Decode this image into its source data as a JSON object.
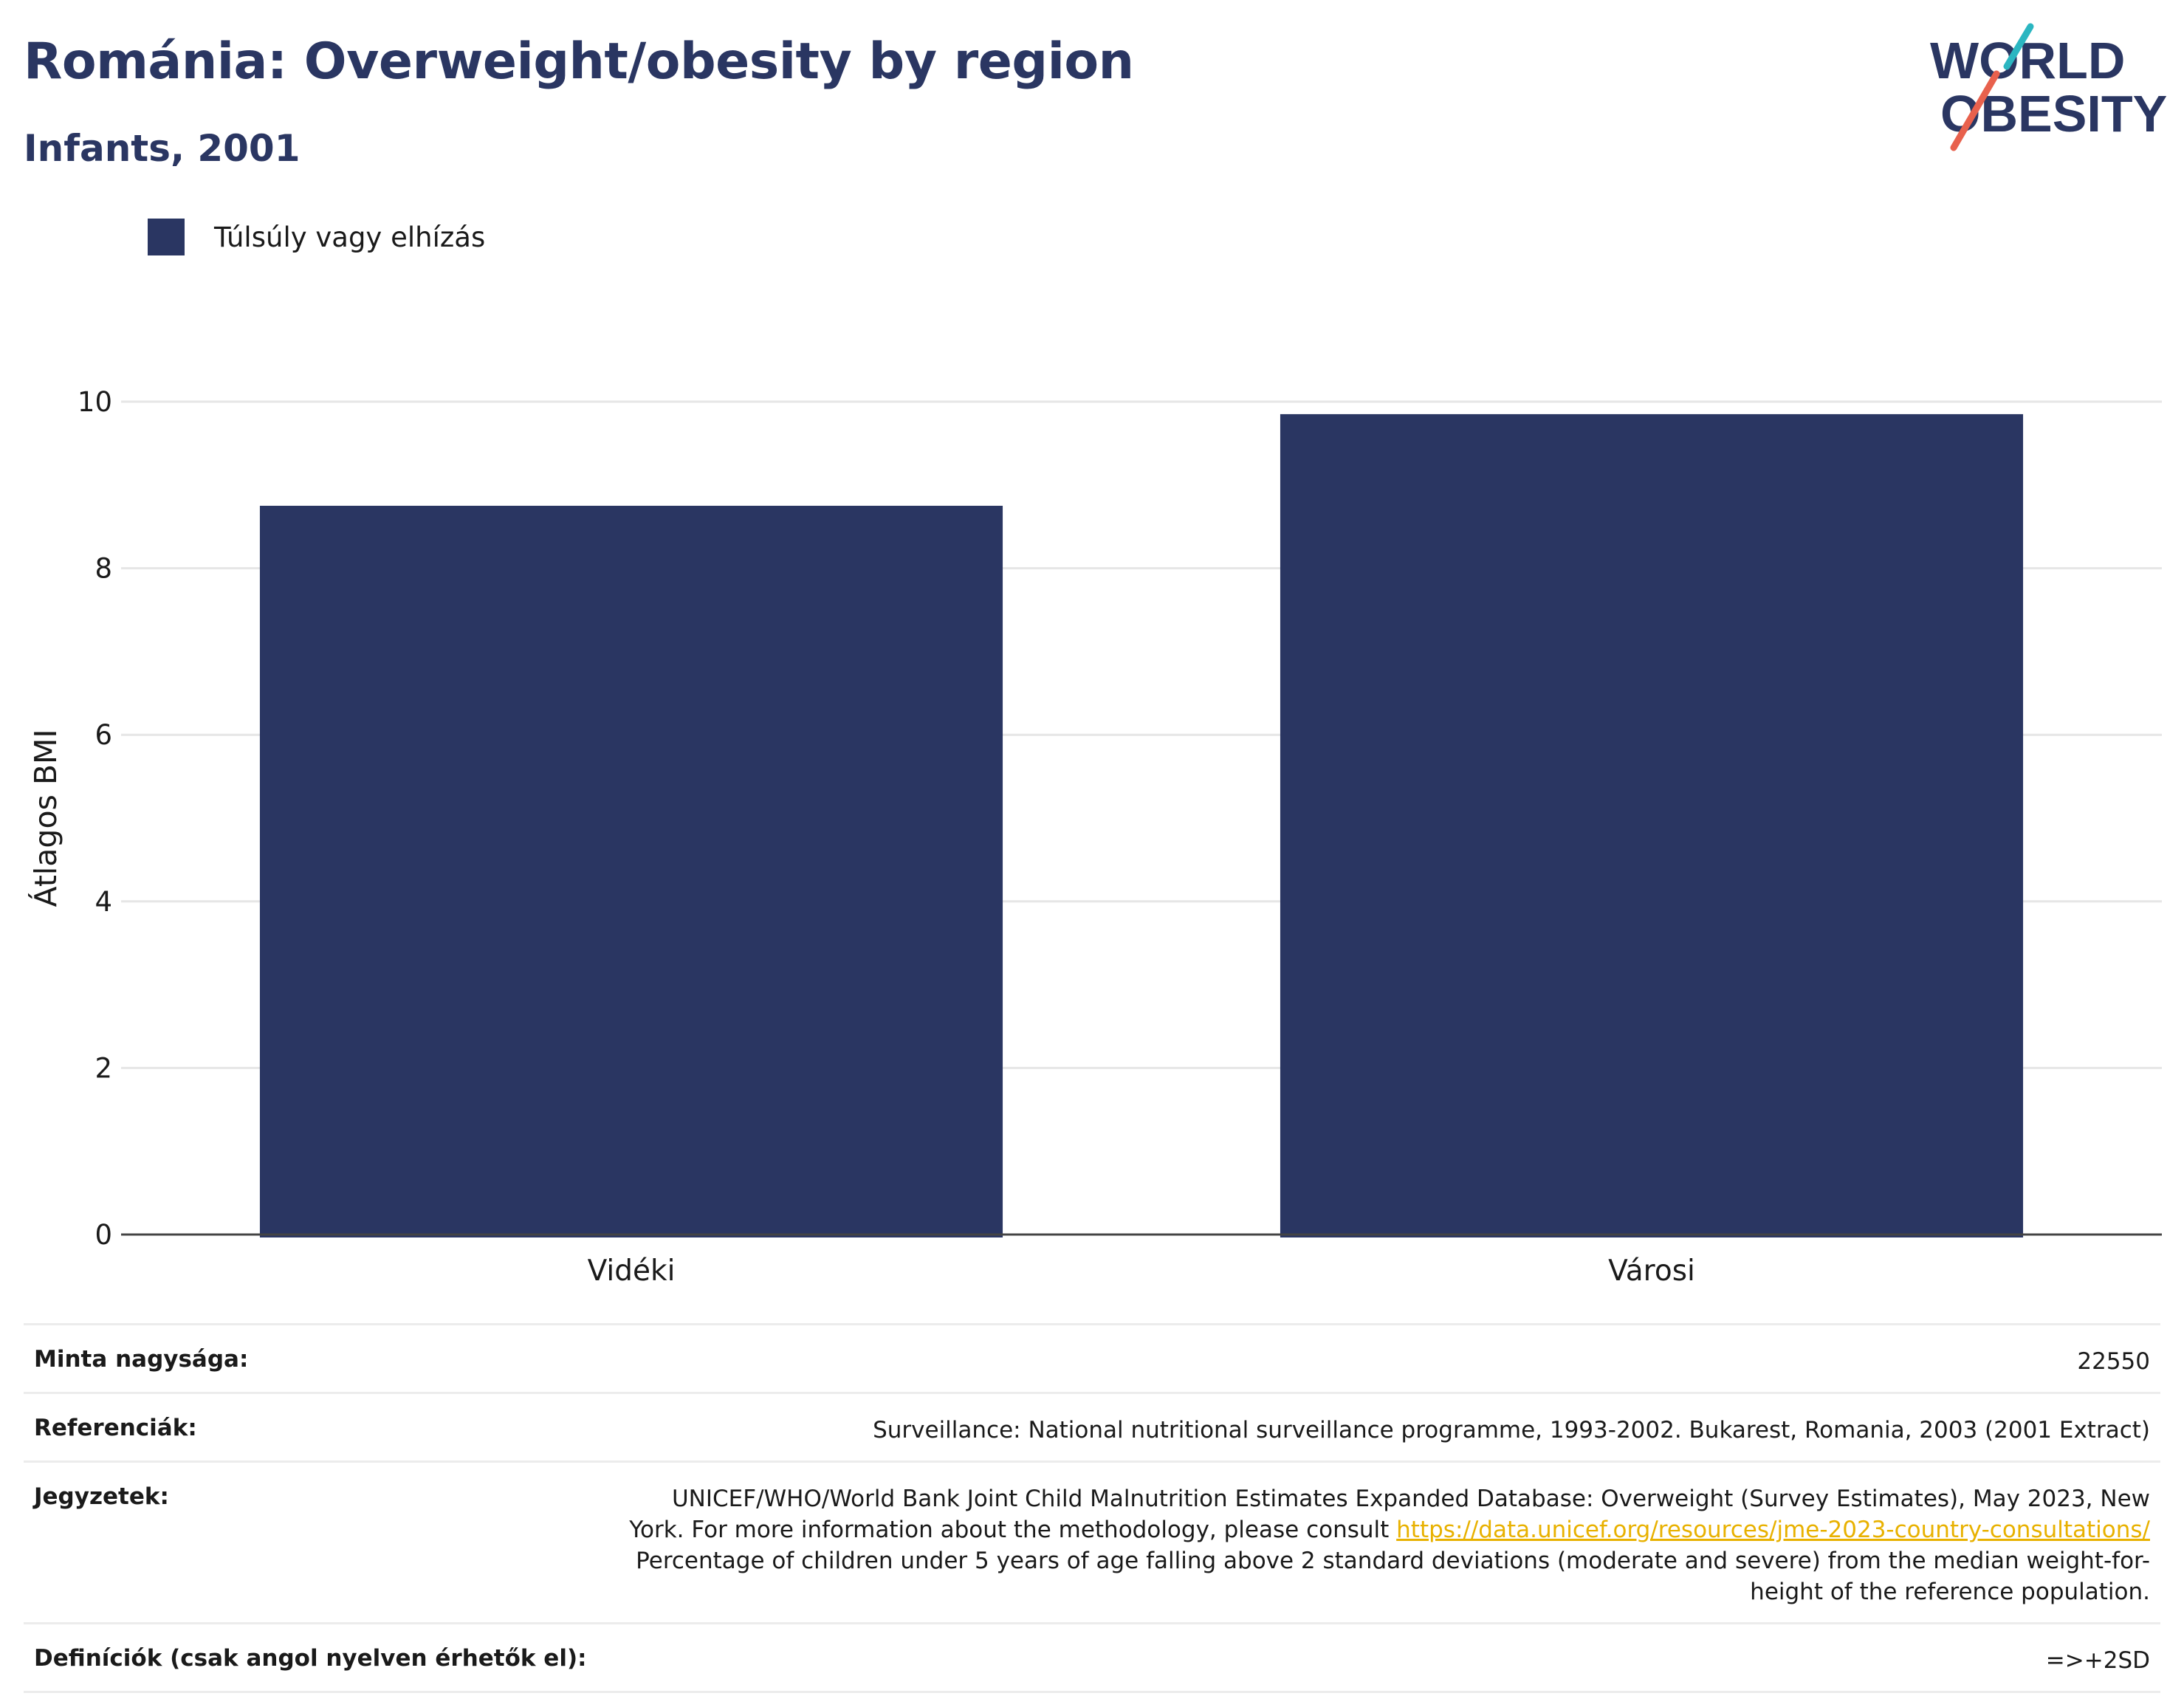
{
  "header": {
    "title": "Románia: Overweight/obesity by region",
    "subtitle": "Infants, 2001"
  },
  "logo": {
    "line1": "WORLD",
    "line2": "OBESITY",
    "colors": {
      "navy": "#2a3662",
      "teal": "#2bb6c1",
      "coral": "#e8614d"
    }
  },
  "legend": {
    "label": "Túlsúly vagy elhízás",
    "color": "#2a3662"
  },
  "chart_data": {
    "type": "bar",
    "categories": [
      "Vidéki",
      "Városi"
    ],
    "series": [
      {
        "name": "Túlsúly vagy elhízás",
        "values": [
          8.75,
          9.85
        ],
        "color": "#2a3662"
      }
    ],
    "title": "",
    "xlabel": "",
    "ylabel": "Átlagos BMI",
    "ylim": [
      0,
      10
    ],
    "yticks": [
      "0",
      "2",
      "4",
      "6",
      "8",
      "10"
    ],
    "grid": true,
    "legend_position": "top-left"
  },
  "meta": {
    "sample_size": {
      "label": "Minta nagysága:",
      "value": "22550"
    },
    "references": {
      "label": "Referenciák:",
      "value": "Surveillance: National nutritional surveillance programme, 1993-2002. Bukarest, Romania, 2003 (2001 Extract)"
    },
    "notes": {
      "label": "Jegyzetek:",
      "text_before_link": "UNICEF/WHO/World Bank Joint Child Malnutrition Estimates Expanded Database: Overweight (Survey Estimates), May 2023, New York. For more information about the methodology, please consult ",
      "link": "https://data.unicef.org/resources/jme-2023-country-consultations/",
      "text_after_link": " Percentage of children under 5 years of age falling above 2 standard deviations (moderate and severe) from the median weight-for-height of the reference population."
    },
    "definitions": {
      "label": "Definíciók (csak angol nyelven érhetők el):",
      "value": "=>+2SD"
    }
  }
}
